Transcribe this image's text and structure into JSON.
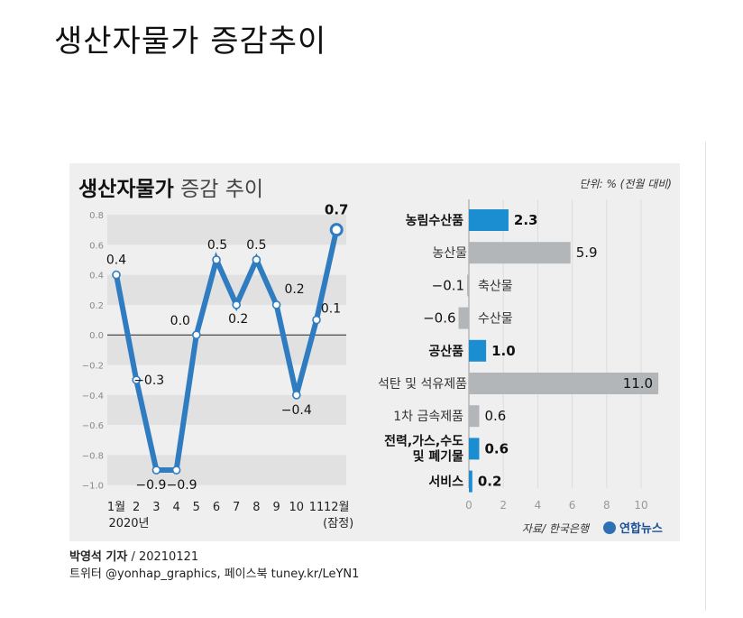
{
  "page_title": "생산자물가 증감추이",
  "panel": {
    "title_bold": "생산자물가",
    "title_light": " 증감 추이",
    "unit": "단위: % (전월 대비)",
    "source": "자료/ 한국은행",
    "logo_text": "연합뉴스"
  },
  "credits": {
    "reporter": "박영석 기자",
    "date": " / 20210121",
    "sns": "트위터 @yonhap_graphics, 페이스북 tuney.kr/LeYN1"
  },
  "colors": {
    "accent": "#2f7cc1",
    "bar_gray": "#b3b6b8",
    "bar_blue": "#1b8ed1",
    "band": "#e1e1e1"
  },
  "chart_data": [
    {
      "type": "line",
      "categories": [
        "1월",
        "2",
        "3",
        "4",
        "5",
        "6",
        "7",
        "8",
        "9",
        "10",
        "11",
        "12월"
      ],
      "x_sublabels": {
        "first": "2020년",
        "last": "(잠정)"
      },
      "values": [
        0.4,
        -0.3,
        -0.9,
        -0.9,
        0.0,
        0.5,
        0.2,
        0.5,
        0.2,
        -0.4,
        0.1,
        0.7
      ],
      "data_labels": [
        "0.4",
        "−0.3",
        "−0.9",
        "−0.9",
        "0.0",
        "0.5",
        "0.2",
        "0.5",
        "0.2",
        "−0.4",
        "0.1",
        "0.7"
      ],
      "y_ticks": [
        "0.8",
        "0.6",
        "0.4",
        "0.2",
        "0.0",
        "−0.2",
        "−0.4",
        "−0.6",
        "−0.8",
        "−1.0"
      ],
      "ylim": [
        -1.0,
        0.8
      ],
      "grid": "alternating bands",
      "line_color": "#2f7cc1"
    },
    {
      "type": "bar",
      "orientation": "horizontal",
      "categories": [
        "농림수산품",
        "농산물",
        "축산물",
        "수산물",
        "공산품",
        "석탄 및 석유제품",
        "1차 금속제품",
        "전력,가스,수도\n및 폐기물",
        "서비스"
      ],
      "values": [
        2.3,
        5.9,
        -0.1,
        -0.6,
        1.0,
        11.0,
        0.6,
        0.6,
        0.2
      ],
      "value_labels": [
        "2.3",
        "5.9",
        "−0.1",
        "−0.6",
        "1.0",
        "11.0",
        "0.6",
        "0.6",
        "0.2"
      ],
      "major": [
        true,
        false,
        false,
        false,
        true,
        false,
        false,
        true,
        true
      ],
      "x_ticks": [
        "0",
        "2",
        "4",
        "6",
        "8",
        "10"
      ],
      "xlim": [
        0,
        12
      ]
    }
  ]
}
